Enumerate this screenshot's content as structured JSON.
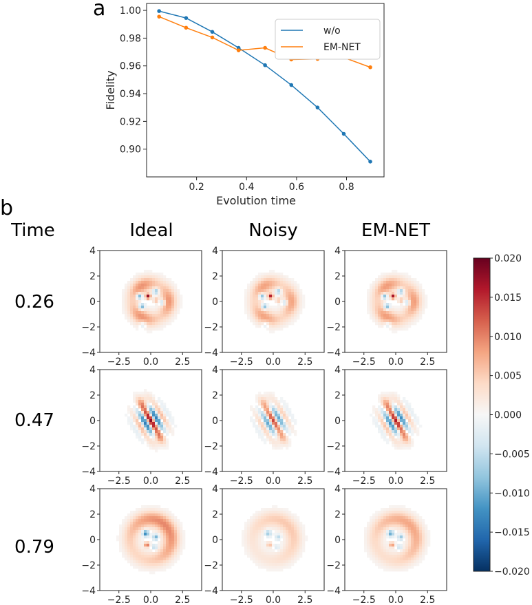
{
  "panel_letters": {
    "a": "a",
    "b": "b"
  },
  "time_header": "Time",
  "column_titles": [
    "Ideal",
    "Noisy",
    "EM-NET"
  ],
  "row_times": [
    "0.26",
    "0.47",
    "0.79"
  ],
  "colors": {
    "w_o": "#1f77b4",
    "em_net": "#ff7f0e",
    "cmap_pos": "#67001f",
    "cmap_neg": "#053061"
  },
  "chart_data": [
    {
      "type": "line",
      "title": "",
      "xlabel": "Evolution time",
      "ylabel": "Fidelity",
      "xlim": [
        0.0,
        0.95
      ],
      "ylim": [
        0.88,
        1.005
      ],
      "xticks": [
        0.2,
        0.4,
        0.6,
        0.8
      ],
      "xtick_labels": [
        "0.2",
        "0.4",
        "0.6",
        "0.8"
      ],
      "yticks": [
        0.9,
        0.92,
        0.94,
        0.96,
        0.98,
        1.0
      ],
      "ytick_labels": [
        "0.90",
        "0.92",
        "0.94",
        "0.96",
        "0.98",
        "1.00"
      ],
      "x": [
        0.05,
        0.158,
        0.263,
        0.368,
        0.474,
        0.579,
        0.684,
        0.789,
        0.895
      ],
      "series": [
        {
          "name": "w/o",
          "values": [
            0.9995,
            0.9945,
            0.9845,
            0.973,
            0.9605,
            0.9462,
            0.93,
            0.911,
            0.891
          ]
        },
        {
          "name": "EM-NET",
          "values": [
            0.9955,
            0.9875,
            0.9805,
            0.9712,
            0.973,
            0.9646,
            0.965,
            0.966,
            0.959
          ]
        }
      ],
      "legend": "top-right",
      "grid": false
    },
    {
      "type": "heatmap",
      "title": "",
      "rows": [
        "0.26",
        "0.47",
        "0.79"
      ],
      "columns": [
        "Ideal",
        "Noisy",
        "EM-NET"
      ],
      "xlim": [
        -4,
        4
      ],
      "ylim": [
        -4,
        4
      ],
      "xticks": [
        -2.5,
        0.0,
        2.5
      ],
      "xtick_labels": [
        "−2.5",
        "0.0",
        "2.5"
      ],
      "yticks": [
        4,
        2,
        0,
        -2,
        -4
      ],
      "ytick_labels": [
        "4",
        "2",
        "0",
        "−2",
        "−4"
      ],
      "colorbar": {
        "min": -0.02,
        "max": 0.02,
        "ticks": [
          0.02,
          0.015,
          0.01,
          0.005,
          0.0,
          -0.005,
          -0.01,
          -0.015,
          -0.02
        ],
        "tick_labels": [
          "0.020",
          "0.015",
          "0.010",
          "0.005",
          "0.000",
          "−0.005",
          "−0.010",
          "−0.015",
          "−0.020"
        ],
        "colormap": "RdBu_r"
      },
      "grid": false
    }
  ]
}
